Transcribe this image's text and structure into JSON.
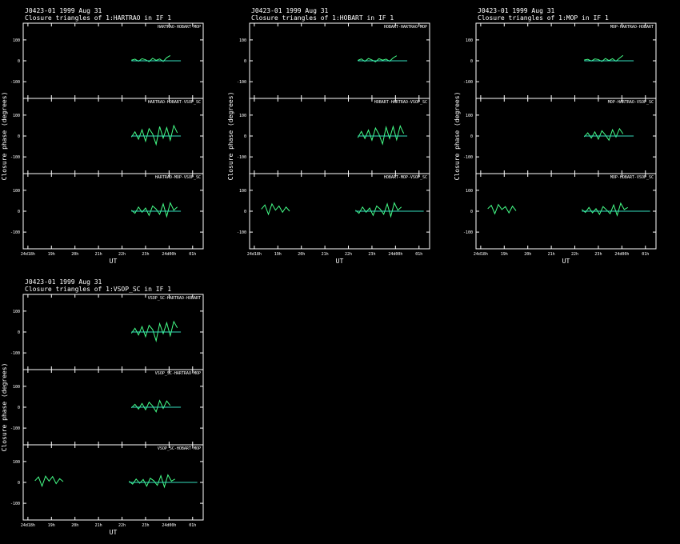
{
  "chart_data": [
    {
      "type": "line",
      "title": "J0423-01  1999 Aug 31",
      "subtitle": "Closure triangles of 1:HARTRAO in IF 1",
      "ylabel": "Closure phase  (degrees)",
      "xlabel": "UT",
      "xlim": [
        17.8,
        25.45
      ],
      "xticks": [
        {
          "value": 18,
          "label": "24d18h"
        },
        {
          "value": 19,
          "label": "19h"
        },
        {
          "value": 20,
          "label": "20h"
        },
        {
          "value": 21,
          "label": "21h"
        },
        {
          "value": 22,
          "label": "22h"
        },
        {
          "value": 23,
          "label": "23h"
        },
        {
          "value": 24,
          "label": "24d00h"
        },
        {
          "value": 25,
          "label": "01h"
        }
      ],
      "panels": [
        {
          "label": "HARTRAO-HOBART-MOP",
          "ylim": [
            -180,
            180
          ],
          "yticks": [
            -100,
            0,
            100
          ],
          "series": [
            {
              "color": "#44ff88",
              "x": [
                22.4,
                22.55,
                22.7,
                22.85,
                23.0,
                23.15,
                23.3,
                23.45,
                23.6,
                23.75,
                23.9,
                24.05
              ],
              "values": [
                3,
                8,
                -2,
                10,
                5,
                -4,
                12,
                2,
                9,
                -3,
                15,
                25
              ]
            },
            {
              "color": "#33ddbb",
              "x": [
                22.4,
                24.5
              ],
              "values": [
                0,
                0
              ]
            }
          ]
        },
        {
          "label": "HARTRAO-HOBART-VSOP_SC",
          "ylim": [
            -180,
            180
          ],
          "yticks": [
            -100,
            0,
            100
          ],
          "series": [
            {
              "color": "#44ff88",
              "x": [
                22.4,
                22.55,
                22.7,
                22.85,
                23.0,
                23.15,
                23.3,
                23.45,
                23.6,
                23.75,
                23.9,
                24.05,
                24.2,
                24.35
              ],
              "values": [
                -5,
                20,
                -15,
                30,
                -25,
                35,
                10,
                -40,
                45,
                -10,
                40,
                -20,
                50,
                15
              ]
            },
            {
              "color": "#33ddbb",
              "x": [
                22.4,
                24.5
              ],
              "values": [
                0,
                0
              ]
            }
          ]
        },
        {
          "label": "HARTRAO-MOP-VSOP_SC",
          "ylim": [
            -180,
            180
          ],
          "yticks": [
            -100,
            0,
            100
          ],
          "series": [
            {
              "color": "#44ff88",
              "x": [
                22.4,
                22.55,
                22.7,
                22.85,
                23.0,
                23.15,
                23.3,
                23.45,
                23.6,
                23.75,
                23.9,
                24.05,
                24.2,
                24.35
              ],
              "values": [
                5,
                -10,
                20,
                -5,
                15,
                -20,
                25,
                10,
                -15,
                35,
                -25,
                40,
                5,
                20
              ]
            },
            {
              "color": "#33ddbb",
              "x": [
                22.4,
                24.5
              ],
              "values": [
                0,
                0
              ]
            }
          ]
        }
      ]
    },
    {
      "type": "line",
      "title": "J0423-01  1999 Aug 31",
      "subtitle": "Closure triangles of 1:HOBART in IF 1",
      "ylabel": "Closure phase  (degrees)",
      "xlabel": "UT",
      "xlim": [
        17.8,
        25.45
      ],
      "xticks": [
        {
          "value": 18,
          "label": "24d18h"
        },
        {
          "value": 19,
          "label": "19h"
        },
        {
          "value": 20,
          "label": "20h"
        },
        {
          "value": 21,
          "label": "21h"
        },
        {
          "value": 22,
          "label": "22h"
        },
        {
          "value": 23,
          "label": "23h"
        },
        {
          "value": 24,
          "label": "24d00h"
        },
        {
          "value": 25,
          "label": "01h"
        }
      ],
      "panels": [
        {
          "label": "HOBART-HARTRAO-MOP",
          "ylim": [
            -180,
            180
          ],
          "yticks": [
            -100,
            0,
            100
          ],
          "series": [
            {
              "color": "#44ff88",
              "x": [
                22.4,
                22.55,
                22.7,
                22.85,
                23.0,
                23.15,
                23.3,
                23.45,
                23.6,
                23.75,
                23.9,
                24.05
              ],
              "values": [
                2,
                9,
                -3,
                11,
                4,
                -5,
                10,
                3,
                8,
                -2,
                14,
                24
              ]
            },
            {
              "color": "#33ddbb",
              "x": [
                22.4,
                24.5
              ],
              "values": [
                0,
                0
              ]
            }
          ]
        },
        {
          "label": "HOBART-HARTRAO-VSOP_SC",
          "ylim": [
            -180,
            180
          ],
          "yticks": [
            -100,
            0,
            100
          ],
          "series": [
            {
              "color": "#44ff88",
              "x": [
                22.4,
                22.55,
                22.7,
                22.85,
                23.0,
                23.15,
                23.3,
                23.45,
                23.6,
                23.75,
                23.9,
                24.05,
                24.2,
                24.35
              ],
              "values": [
                -8,
                22,
                -12,
                28,
                -20,
                38,
                8,
                -38,
                42,
                -12,
                45,
                -18,
                48,
                12
              ]
            },
            {
              "color": "#33ddbb",
              "x": [
                22.4,
                24.5
              ],
              "values": [
                0,
                0
              ]
            }
          ]
        },
        {
          "label": "HOBART-MOP-VSOP_SC",
          "ylim": [
            -180,
            180
          ],
          "yticks": [
            -100,
            0,
            100
          ],
          "series": [
            {
              "color": "#44ff88",
              "x": [
                18.3,
                18.45,
                18.6,
                18.75,
                18.9,
                19.05,
                19.2,
                19.35,
                19.5,
                21,
                22.3,
                22.45,
                22.6,
                22.75,
                22.9,
                23.05,
                23.2,
                23.35,
                23.5,
                23.65,
                23.8,
                23.95,
                24.1,
                24.25
              ],
              "values": [
                10,
                30,
                -15,
                35,
                5,
                25,
                -5,
                20,
                0,
                null,
                5,
                -10,
                20,
                -5,
                15,
                -20,
                25,
                10,
                -15,
                35,
                -25,
                40,
                5,
                20
              ]
            },
            {
              "color": "#33ddbb",
              "x": [
                22.3,
                25.2
              ],
              "values": [
                0,
                0
              ]
            }
          ]
        }
      ]
    },
    {
      "type": "line",
      "title": "J0423-01  1999 Aug 31",
      "subtitle": "Closure triangles of 1:MOP in IF 1",
      "ylabel": "Closure phase  (degrees)",
      "xlabel": "UT",
      "xlim": [
        17.8,
        25.45
      ],
      "xticks": [
        {
          "value": 18,
          "label": "24d18h"
        },
        {
          "value": 19,
          "label": "19h"
        },
        {
          "value": 20,
          "label": "20h"
        },
        {
          "value": 21,
          "label": "21h"
        },
        {
          "value": 22,
          "label": "22h"
        },
        {
          "value": 23,
          "label": "23h"
        },
        {
          "value": 24,
          "label": "24d00h"
        },
        {
          "value": 25,
          "label": "01h"
        }
      ],
      "panels": [
        {
          "label": "MOP-HARTRAO-HOBART",
          "ylim": [
            -180,
            180
          ],
          "yticks": [
            -100,
            0,
            100
          ],
          "series": [
            {
              "color": "#44ff88",
              "x": [
                22.4,
                22.55,
                22.7,
                22.85,
                23.0,
                23.15,
                23.3,
                23.45,
                23.6,
                23.75,
                23.9,
                24.05
              ],
              "values": [
                4,
                7,
                -1,
                9,
                6,
                -3,
                11,
                1,
                10,
                -2,
                13,
                26
              ]
            },
            {
              "color": "#33ddbb",
              "x": [
                22.4,
                24.5
              ],
              "values": [
                0,
                0
              ]
            }
          ]
        },
        {
          "label": "MOP-HARTRAO-VSOP_SC",
          "ylim": [
            -180,
            180
          ],
          "yticks": [
            -100,
            0,
            100
          ],
          "series": [
            {
              "color": "#44ff88",
              "x": [
                22.4,
                22.55,
                22.7,
                22.85,
                23.0,
                23.15,
                23.3,
                23.45,
                23.6,
                23.75,
                23.9,
                24.05
              ],
              "values": [
                -4,
                15,
                -10,
                20,
                -15,
                25,
                5,
                -20,
                30,
                -5,
                35,
                10
              ]
            },
            {
              "color": "#33ddbb",
              "x": [
                22.4,
                24.5
              ],
              "values": [
                0,
                0
              ]
            }
          ]
        },
        {
          "label": "MOP-HOBART-VSOP_SC",
          "ylim": [
            -180,
            180
          ],
          "yticks": [
            -100,
            0,
            100
          ],
          "series": [
            {
              "color": "#44ff88",
              "x": [
                18.3,
                18.45,
                18.6,
                18.75,
                18.9,
                19.05,
                19.2,
                19.35,
                19.5,
                21,
                22.3,
                22.45,
                22.6,
                22.75,
                22.9,
                23.05,
                23.2,
                23.35,
                23.5,
                23.65,
                23.8,
                23.95,
                24.1,
                24.25
              ],
              "values": [
                12,
                28,
                -12,
                32,
                8,
                22,
                -8,
                24,
                2,
                null,
                8,
                -6,
                18,
                -8,
                12,
                -15,
                22,
                6,
                -12,
                30,
                -20,
                38,
                8,
                18
              ]
            },
            {
              "color": "#33ddbb",
              "x": [
                22.3,
                25.2
              ],
              "values": [
                0,
                0
              ]
            }
          ]
        }
      ]
    },
    {
      "type": "line",
      "title": "J0423-01  1999 Aug 31",
      "subtitle": "Closure triangles of 1:VSOP_SC in IF 1",
      "ylabel": "Closure phase  (degrees)",
      "xlabel": "UT",
      "xlim": [
        17.8,
        25.45
      ],
      "xticks": [
        {
          "value": 18,
          "label": "24d18h"
        },
        {
          "value": 19,
          "label": "19h"
        },
        {
          "value": 20,
          "label": "20h"
        },
        {
          "value": 21,
          "label": "21h"
        },
        {
          "value": 22,
          "label": "22h"
        },
        {
          "value": 23,
          "label": "23h"
        },
        {
          "value": 24,
          "label": "24d00h"
        },
        {
          "value": 25,
          "label": "01h"
        }
      ],
      "panels": [
        {
          "label": "VSOP_SC-HARTRAO-HOBART",
          "ylim": [
            -180,
            180
          ],
          "yticks": [
            -100,
            0,
            100
          ],
          "series": [
            {
              "color": "#44ff88",
              "x": [
                22.4,
                22.55,
                22.7,
                22.85,
                23.0,
                23.15,
                23.3,
                23.45,
                23.6,
                23.75,
                23.9,
                24.05,
                24.2,
                24.35
              ],
              "values": [
                -6,
                18,
                -14,
                26,
                -22,
                32,
                12,
                -42,
                40,
                -8,
                44,
                -18,
                50,
                20
              ]
            },
            {
              "color": "#33ddbb",
              "x": [
                22.4,
                24.5
              ],
              "values": [
                0,
                0
              ]
            }
          ]
        },
        {
          "label": "VSOP_SC-HARTRAO-MOP",
          "ylim": [
            -180,
            180
          ],
          "yticks": [
            -100,
            0,
            100
          ],
          "series": [
            {
              "color": "#44ff88",
              "x": [
                22.4,
                22.55,
                22.7,
                22.85,
                23.0,
                23.15,
                23.3,
                23.45,
                23.6,
                23.75,
                23.9,
                24.05
              ],
              "values": [
                -3,
                14,
                -9,
                18,
                -12,
                24,
                6,
                -22,
                32,
                -6,
                30,
                8
              ]
            },
            {
              "color": "#33ddbb",
              "x": [
                22.4,
                24.5
              ],
              "values": [
                0,
                0
              ]
            }
          ]
        },
        {
          "label": "VSOP_SC-HOBART-MOP",
          "ylim": [
            -180,
            180
          ],
          "yticks": [
            -100,
            0,
            100
          ],
          "series": [
            {
              "color": "#44ff88",
              "x": [
                18.3,
                18.45,
                18.6,
                18.75,
                18.9,
                19.05,
                19.2,
                19.35,
                19.5,
                21,
                22.3,
                22.45,
                22.6,
                22.75,
                22.9,
                23.05,
                23.2,
                23.35,
                23.5,
                23.65,
                23.8,
                23.95,
                24.1,
                24.25
              ],
              "values": [
                8,
                26,
                -18,
                30,
                6,
                28,
                -6,
                18,
                4,
                null,
                6,
                -8,
                16,
                -4,
                14,
                -18,
                20,
                8,
                -14,
                32,
                -22,
                36,
                6,
                16
              ]
            },
            {
              "color": "#33ddbb",
              "x": [
                22.3,
                25.2
              ],
              "values": [
                0,
                0
              ]
            }
          ]
        }
      ]
    }
  ]
}
